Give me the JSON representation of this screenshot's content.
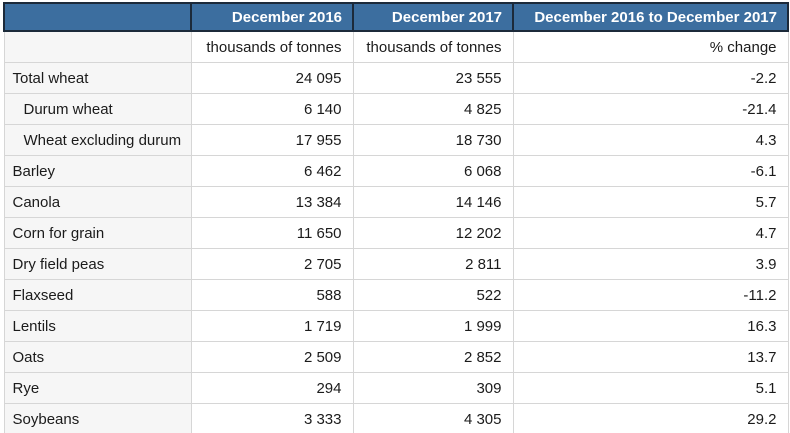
{
  "table": {
    "columns": [
      {
        "label": "",
        "unit": ""
      },
      {
        "label": "December 2016",
        "unit": "thousands of tonnes"
      },
      {
        "label": "December 2017",
        "unit": "thousands of tonnes"
      },
      {
        "label": "December 2016 to December 2017",
        "unit": "% change"
      }
    ],
    "rows": [
      {
        "label": "Total wheat",
        "v2016": "24 095",
        "v2017": "23 555",
        "change": "-2.2"
      },
      {
        "label": "Durum wheat",
        "v2016": "6 140",
        "v2017": "4 825",
        "change": "-21.4"
      },
      {
        "label": "Wheat excluding durum",
        "v2016": "17 955",
        "v2017": "18 730",
        "change": "4.3"
      },
      {
        "label": "Barley",
        "v2016": "6 462",
        "v2017": "6 068",
        "change": "-6.1"
      },
      {
        "label": "Canola",
        "v2016": "13 384",
        "v2017": "14 146",
        "change": "5.7"
      },
      {
        "label": "Corn for grain",
        "v2016": "11 650",
        "v2017": "12 202",
        "change": "4.7"
      },
      {
        "label": "Dry field peas",
        "v2016": "2 705",
        "v2017": "2 811",
        "change": "3.9"
      },
      {
        "label": "Flaxseed",
        "v2016": "588",
        "v2017": "522",
        "change": "-11.2"
      },
      {
        "label": "Lentils",
        "v2016": "1 719",
        "v2017": "1 999",
        "change": "16.3"
      },
      {
        "label": "Oats",
        "v2016": "2 509",
        "v2017": "2 852",
        "change": "13.7"
      },
      {
        "label": "Rye",
        "v2016": "294",
        "v2017": "309",
        "change": "5.1"
      },
      {
        "label": "Soybeans",
        "v2016": "3 333",
        "v2017": "4 305",
        "change": "29.2"
      }
    ]
  },
  "colors": {
    "header_bg": "#3c6e9f",
    "header_text": "#ffffff",
    "header_border": "#1c2a3a",
    "row_label_bg": "#f6f6f6",
    "cell_border": "#d6d6d6",
    "body_text": "#1b1b1b"
  },
  "chart_data": {
    "type": "table",
    "title": "",
    "column_headers": [
      "",
      "December 2016",
      "December 2017",
      "December 2016 to December 2017"
    ],
    "units_row": [
      "",
      "thousands of tonnes",
      "thousands of tonnes",
      "% change"
    ],
    "categories": [
      "Total wheat",
      "Durum wheat",
      "Wheat excluding durum",
      "Barley",
      "Canola",
      "Corn for grain",
      "Dry field peas",
      "Flaxseed",
      "Lentils",
      "Oats",
      "Rye",
      "Soybeans"
    ],
    "indented_categories": [
      "Durum wheat",
      "Wheat excluding durum"
    ],
    "series": [
      {
        "name": "December 2016 (thousands of tonnes)",
        "values": [
          24095,
          6140,
          17955,
          6462,
          13384,
          11650,
          2705,
          588,
          1719,
          2509,
          294,
          3333
        ]
      },
      {
        "name": "December 2017 (thousands of tonnes)",
        "values": [
          23555,
          4825,
          18730,
          6068,
          14146,
          12202,
          2811,
          522,
          1999,
          2852,
          309,
          4305
        ]
      },
      {
        "name": "December 2016 to December 2017 (% change)",
        "values": [
          -2.2,
          -21.4,
          4.3,
          -6.1,
          5.7,
          4.7,
          3.9,
          -11.2,
          16.3,
          13.7,
          5.1,
          29.2
        ]
      }
    ]
  }
}
